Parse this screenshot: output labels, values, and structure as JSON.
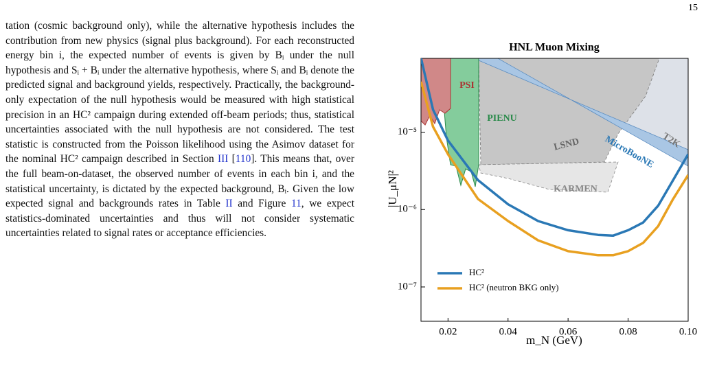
{
  "page_number": "15",
  "paragraph": [
    {
      "text": "tation (cosmic background only), while the alternative hypothesis includes the contribution from new physics (signal plus background). For each reconstructed energy bin i, the expected number of events is given by Bᵢ under the null hypothesis and Sᵢ + Bᵢ under the alternative hypothesis, where Sᵢ and Bᵢ denote the predicted signal and background yields, respectively. Practically, the background-only expectation of the null hypothesis would be measured with high statistical precision in an HC² campaign during extended off-beam periods; thus, statistical uncertainties associated with the null hypothesis are not considered. The test statistic is constructed from the Poisson likelihood using the Asimov dataset for the nominal HC² campaign described in Section "
    },
    {
      "text": "III",
      "link": true
    },
    {
      "text": " ["
    },
    {
      "text": "110",
      "link": true
    },
    {
      "text": "]. This means that, over the full beam-on-dataset, the observed number of events in each bin i, and the statistical uncertainty, is dictated by the expected background, Bᵢ. Given the low expected signal and backgrounds rates in Table "
    },
    {
      "text": "II",
      "link": true
    },
    {
      "text": " and Figure "
    },
    {
      "text": "11",
      "link": true
    },
    {
      "text": ", we expect statistics-dominated uncertainties and thus will not consider systematic uncertainties related to signal rates or acceptance efficiencies."
    }
  ],
  "chart_data": {
    "type": "line",
    "title": "HNL Muon Mixing",
    "x_label": "m_N (GeV)",
    "y_label": "|U_μN|²",
    "x": [
      0.011,
      0.015,
      0.02,
      0.03,
      0.04,
      0.05,
      0.06,
      0.07,
      0.075,
      0.08,
      0.085,
      0.09,
      0.095,
      0.1
    ],
    "series": [
      {
        "name": "HC²",
        "color": "#2a78b5",
        "values": [
          9.1e-05,
          1.96e-05,
          7.8e-06,
          2.4e-06,
          1.17e-06,
          7.1e-07,
          5.4e-07,
          4.7e-07,
          4.6e-07,
          5.4e-07,
          6.8e-07,
          1.12e-06,
          2.4e-06,
          5.2e-06
        ]
      },
      {
        "name": "HC² (neutron BKG only)",
        "color": "#e8a020",
        "values": [
          4.5e-05,
          1.18e-05,
          5.2e-06,
          1.37e-06,
          7.1e-07,
          4e-07,
          2.9e-07,
          2.57e-07,
          2.57e-07,
          2.9e-07,
          3.7e-07,
          6.1e-07,
          1.37e-06,
          2.8e-06
        ]
      }
    ],
    "xlim": [
      0.011,
      0.1
    ],
    "ylim": [
      3.6e-08,
      9e-05
    ],
    "y_scale": "log",
    "xticks": [
      0.02,
      0.04,
      0.06,
      0.08,
      {
        "value": 0.1,
        "label": "0.10"
      }
    ],
    "yticks": [
      {
        "value": 1e-07,
        "label": "10⁻⁷"
      },
      {
        "value": 1e-06,
        "label": "10⁻⁶"
      },
      {
        "value": 1e-05,
        "label": "10⁻⁵"
      }
    ],
    "legend": "lower left",
    "annotations": [
      "PSI",
      "PIENU",
      "LSND",
      "MicroBooNE",
      "T2K",
      "KARMEN"
    ]
  }
}
